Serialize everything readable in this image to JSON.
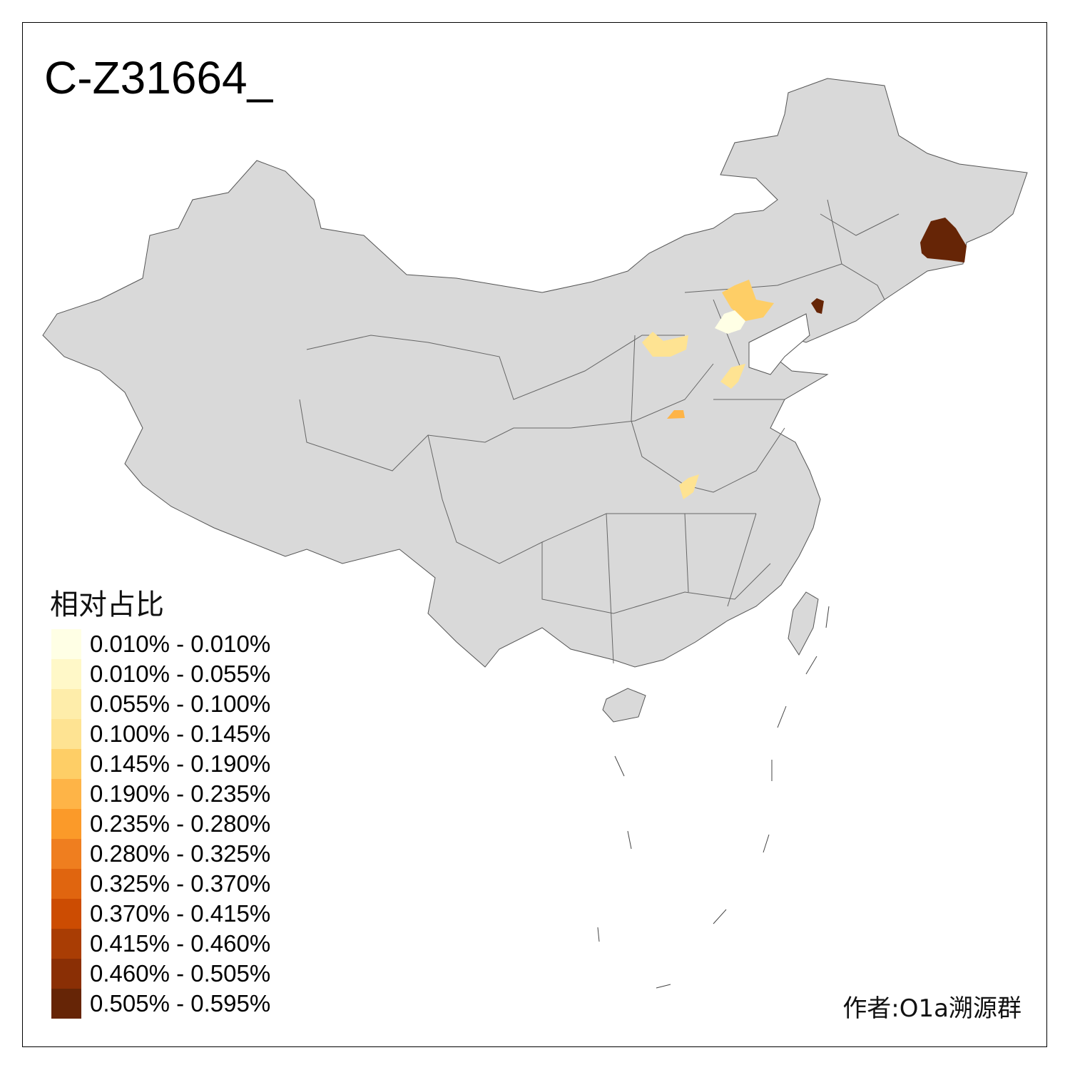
{
  "title": "C-Z31664_",
  "legend": {
    "title": "相对占比",
    "bins": [
      {
        "label": "0.010% - 0.010%",
        "color": "#FFFFE5"
      },
      {
        "label": "0.010% - 0.055%",
        "color": "#FFF8C8"
      },
      {
        "label": "0.055% - 0.100%",
        "color": "#FEEDAA"
      },
      {
        "label": "0.100% - 0.145%",
        "color": "#FEE392"
      },
      {
        "label": "0.145% - 0.190%",
        "color": "#FECE66"
      },
      {
        "label": "0.190% - 0.235%",
        "color": "#FEB447"
      },
      {
        "label": "0.235% - 0.280%",
        "color": "#FB9A29"
      },
      {
        "label": "0.280% - 0.325%",
        "color": "#EF7E1F"
      },
      {
        "label": "0.325% - 0.370%",
        "color": "#E0650F"
      },
      {
        "label": "0.370% - 0.415%",
        "color": "#CC4C02"
      },
      {
        "label": "0.415% - 0.460%",
        "color": "#A93D04"
      },
      {
        "label": "0.460% - 0.505%",
        "color": "#8A2F05"
      },
      {
        "label": "0.505% - 0.595%",
        "color": "#662506"
      }
    ]
  },
  "map": {
    "base_fill": "#D9D9D9",
    "border_color": "#555555",
    "highlighted_area_colors": [
      "#662506",
      "#662506",
      "#FECE66",
      "#FFFFE5",
      "#FEE392",
      "#FEE392",
      "#FEB447",
      "#FEE392"
    ]
  },
  "author": "作者:O1a溯源群"
}
